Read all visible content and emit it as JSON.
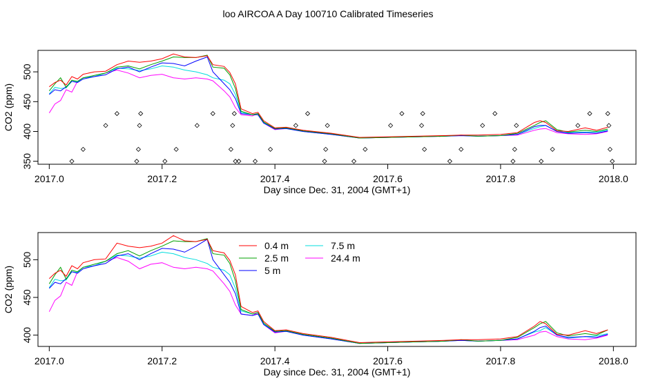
{
  "page_title": "loo AIRCOA A  Day 100710  Calibrated Timeseries",
  "series_colors": {
    "0.4 m": "#ff0000",
    "2.5 m": "#00a000",
    "5 m": "#0000ff",
    "7.5 m": "#00dddd",
    "24.4 m": "#ff00ff"
  },
  "chart_data": [
    {
      "type": "line",
      "xlabel": "Day since Dec. 31, 2004 (GMT+1)",
      "ylabel": "CO2 (ppm)",
      "xlim": [
        2016.98,
        2018.04
      ],
      "ylim": [
        345,
        536
      ],
      "xticks": [
        2017.0,
        2017.2,
        2017.4,
        2017.6,
        2017.8,
        2018.0
      ],
      "xtick_labels": [
        "2017.0",
        "2017.2",
        "2017.4",
        "2017.6",
        "2017.8",
        "2018.0"
      ],
      "yticks": [
        350,
        400,
        450,
        500
      ],
      "ytick_labels": [
        "350",
        "400",
        "450",
        "500"
      ],
      "grid": false,
      "legend": null,
      "x": [
        2017.0,
        2017.01,
        2017.02,
        2017.03,
        2017.04,
        2017.05,
        2017.06,
        2017.08,
        2017.1,
        2017.12,
        2017.14,
        2017.16,
        2017.18,
        2017.2,
        2017.22,
        2017.24,
        2017.26,
        2017.28,
        2017.29,
        2017.31,
        2017.32,
        2017.33,
        2017.34,
        2017.36,
        2017.37,
        2017.38,
        2017.4,
        2017.42,
        2017.45,
        2017.5,
        2017.55,
        2017.6,
        2017.65,
        2017.7,
        2017.73,
        2017.76,
        2017.8,
        2017.83,
        2017.86,
        2017.87,
        2017.88,
        2017.9,
        2017.92,
        2017.95,
        2017.97,
        2017.99
      ],
      "series": [
        {
          "name": "0.4 m",
          "values": [
            475,
            482,
            486,
            478,
            492,
            488,
            496,
            500,
            501,
            512,
            518,
            516,
            518,
            522,
            530,
            525,
            524,
            527,
            512,
            509,
            499,
            480,
            438,
            430,
            432,
            418,
            406,
            407,
            402,
            397,
            390,
            391,
            392,
            393,
            394,
            394,
            395,
            398,
            415,
            418,
            415,
            401,
            400,
            406,
            402,
            407
          ]
        },
        {
          "name": "2.5 m",
          "values": [
            468,
            480,
            490,
            474,
            486,
            484,
            490,
            494,
            498,
            508,
            510,
            505,
            512,
            518,
            525,
            524,
            524,
            528,
            508,
            506,
            495,
            472,
            434,
            428,
            430,
            416,
            405,
            406,
            401,
            396,
            389,
            390,
            391,
            392,
            394,
            392,
            393,
            397,
            410,
            415,
            418,
            403,
            399,
            402,
            400,
            404
          ]
        },
        {
          "name": "5 m",
          "values": [
            462,
            470,
            468,
            475,
            484,
            482,
            488,
            492,
            495,
            505,
            508,
            500,
            508,
            515,
            514,
            510,
            518,
            525,
            500,
            480,
            470,
            455,
            430,
            428,
            428,
            414,
            404,
            405,
            400,
            395,
            389,
            390,
            391,
            392,
            393,
            392,
            393,
            395,
            408,
            410,
            410,
            400,
            397,
            398,
            397,
            401
          ]
        },
        {
          "name": "7.5 m",
          "values": [
            463,
            474,
            472,
            473,
            484,
            483,
            490,
            492,
            498,
            506,
            505,
            502,
            505,
            510,
            508,
            503,
            500,
            495,
            490,
            486,
            480,
            462,
            432,
            428,
            430,
            415,
            404,
            405,
            400,
            395,
            389,
            390,
            391,
            392,
            393,
            392,
            393,
            395,
            405,
            408,
            410,
            400,
            398,
            399,
            399,
            402
          ]
        },
        {
          "name": "24.4 m",
          "values": [
            431,
            446,
            452,
            470,
            466,
            484,
            490,
            492,
            498,
            503,
            498,
            490,
            494,
            496,
            490,
            488,
            490,
            488,
            485,
            468,
            458,
            440,
            428,
            426,
            430,
            414,
            403,
            405,
            400,
            395,
            389,
            390,
            391,
            392,
            393,
            392,
            393,
            394,
            402,
            404,
            405,
            398,
            396,
            395,
            396,
            400
          ]
        }
      ],
      "flag_points": {
        "x": [
          2017.04,
          2017.06,
          2017.1,
          2017.12,
          2017.155,
          2017.158,
          2017.16,
          2017.162,
          2017.205,
          2017.225,
          2017.262,
          2017.29,
          2017.322,
          2017.325,
          2017.328,
          2017.33,
          2017.336,
          2017.365,
          2017.392,
          2017.437,
          2017.458,
          2017.488,
          2017.49,
          2017.493,
          2017.54,
          2017.56,
          2017.605,
          2017.625,
          2017.66,
          2017.662,
          2017.665,
          2017.71,
          2017.73,
          2017.768,
          2017.79,
          2017.822,
          2017.825,
          2017.828,
          2017.872,
          2017.892,
          2017.937,
          2017.958,
          2017.99,
          2017.992,
          2017.994,
          2017.998
        ],
        "y": [
          350,
          370,
          410,
          430,
          350,
          370,
          410,
          430,
          350,
          370,
          410,
          430,
          370,
          410,
          430,
          350,
          350,
          350,
          370,
          410,
          430,
          350,
          370,
          410,
          350,
          370,
          410,
          430,
          410,
          430,
          370,
          350,
          370,
          410,
          430,
          350,
          370,
          410,
          350,
          370,
          410,
          430,
          430,
          410,
          370,
          350
        ]
      }
    },
    {
      "type": "line",
      "xlabel": "Day since Dec. 31, 2004 (GMT+1)",
      "ylabel": "CO2 (ppm)",
      "xlim": [
        2016.98,
        2018.04
      ],
      "ylim": [
        385,
        536
      ],
      "xticks": [
        2017.0,
        2017.2,
        2017.4,
        2017.6,
        2017.8,
        2018.0
      ],
      "xtick_labels": [
        "2017.0",
        "2017.2",
        "2017.4",
        "2017.6",
        "2017.8",
        "2018.0"
      ],
      "yticks": [
        400,
        450,
        500
      ],
      "ytick_labels": [
        "400",
        "450",
        "500"
      ],
      "grid": false,
      "legend": {
        "placement": "top-center",
        "entries": [
          "0.4 m",
          "2.5 m",
          "5 m",
          "7.5 m",
          "24.4 m"
        ]
      },
      "x": [
        2017.0,
        2017.01,
        2017.02,
        2017.03,
        2017.04,
        2017.05,
        2017.06,
        2017.08,
        2017.1,
        2017.12,
        2017.14,
        2017.16,
        2017.18,
        2017.2,
        2017.22,
        2017.24,
        2017.26,
        2017.28,
        2017.29,
        2017.31,
        2017.32,
        2017.33,
        2017.34,
        2017.36,
        2017.37,
        2017.38,
        2017.4,
        2017.42,
        2017.45,
        2017.5,
        2017.55,
        2017.6,
        2017.65,
        2017.7,
        2017.73,
        2017.76,
        2017.8,
        2017.83,
        2017.86,
        2017.87,
        2017.88,
        2017.9,
        2017.92,
        2017.95,
        2017.97,
        2017.99
      ],
      "series": [
        {
          "name": "0.4 m",
          "values": [
            475,
            482,
            486,
            478,
            492,
            488,
            496,
            500,
            501,
            522,
            518,
            516,
            518,
            522,
            532,
            525,
            524,
            527,
            512,
            509,
            499,
            480,
            438,
            430,
            432,
            418,
            406,
            407,
            402,
            397,
            390,
            391,
            392,
            393,
            394,
            394,
            395,
            398,
            412,
            418,
            415,
            401,
            400,
            406,
            402,
            407
          ]
        },
        {
          "name": "2.5 m",
          "values": [
            468,
            480,
            490,
            474,
            486,
            484,
            490,
            494,
            498,
            508,
            512,
            505,
            512,
            518,
            525,
            524,
            524,
            528,
            508,
            506,
            495,
            472,
            434,
            428,
            430,
            416,
            405,
            406,
            401,
            396,
            389,
            390,
            391,
            392,
            394,
            392,
            393,
            397,
            410,
            415,
            418,
            403,
            399,
            402,
            400,
            407
          ]
        },
        {
          "name": "5 m",
          "values": [
            462,
            470,
            468,
            475,
            484,
            482,
            488,
            492,
            495,
            505,
            508,
            500,
            508,
            515,
            514,
            510,
            518,
            527,
            500,
            480,
            470,
            455,
            428,
            426,
            428,
            414,
            404,
            405,
            400,
            395,
            389,
            390,
            391,
            392,
            393,
            392,
            393,
            395,
            405,
            410,
            412,
            400,
            397,
            398,
            397,
            401
          ]
        },
        {
          "name": "7.5 m",
          "values": [
            463,
            474,
            472,
            473,
            484,
            483,
            490,
            492,
            498,
            506,
            505,
            502,
            505,
            510,
            508,
            503,
            500,
            495,
            490,
            486,
            480,
            462,
            432,
            428,
            430,
            415,
            404,
            405,
            400,
            395,
            389,
            390,
            391,
            392,
            393,
            392,
            393,
            395,
            404,
            406,
            410,
            400,
            396,
            398,
            399,
            402
          ]
        },
        {
          "name": "24.4 m",
          "values": [
            431,
            446,
            452,
            470,
            466,
            484,
            490,
            492,
            498,
            503,
            498,
            488,
            494,
            496,
            490,
            488,
            490,
            488,
            485,
            468,
            458,
            440,
            428,
            426,
            430,
            414,
            403,
            405,
            400,
            395,
            389,
            390,
            391,
            392,
            393,
            392,
            393,
            394,
            400,
            404,
            405,
            398,
            395,
            394,
            396,
            400
          ]
        }
      ]
    }
  ]
}
